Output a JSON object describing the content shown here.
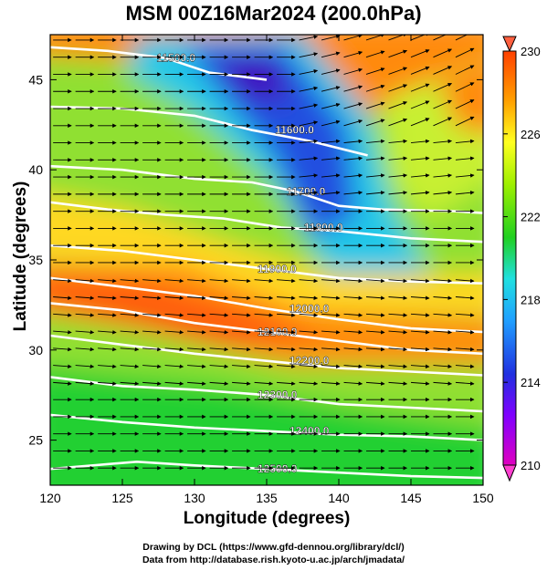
{
  "title": "MSM 00Z16Mar2024 (200.0hPa)",
  "xaxis": {
    "label": "Longitude (degrees)",
    "range": [
      120,
      150
    ],
    "ticks": [
      "120",
      "125",
      "130",
      "135",
      "140",
      "145",
      "150"
    ]
  },
  "yaxis": {
    "label": "Latitude  (degrees)",
    "range": [
      22.5,
      47.5
    ],
    "ticks": [
      "25",
      "30",
      "35",
      "40",
      "45"
    ]
  },
  "colorbar": {
    "range": [
      210,
      230
    ],
    "ticks": [
      "210",
      "214",
      "218",
      "222",
      "226",
      "230"
    ],
    "cmap": "rainbow",
    "extend": "both"
  },
  "contours": [
    {
      "label": "11500.0",
      "path": [
        [
          120,
          46.8
        ],
        [
          124,
          46.6
        ],
        [
          128,
          46.2
        ],
        [
          131,
          45.4
        ],
        [
          135,
          45.0
        ]
      ]
    },
    {
      "label": "11600.0",
      "path": [
        [
          120,
          43.5
        ],
        [
          125,
          43.4
        ],
        [
          130,
          43.0
        ],
        [
          134,
          42.2
        ],
        [
          138,
          41.6
        ],
        [
          142,
          40.8
        ]
      ]
    },
    {
      "label": "11700.0",
      "path": [
        [
          120,
          40.2
        ],
        [
          125,
          40.0
        ],
        [
          130,
          39.5
        ],
        [
          134,
          39.3
        ],
        [
          137,
          38.8
        ],
        [
          140,
          38.0
        ],
        [
          143,
          37.8
        ],
        [
          148,
          37.7
        ],
        [
          150,
          37.6
        ]
      ]
    },
    {
      "label": "11800.0",
      "path": [
        [
          120,
          38.2
        ],
        [
          124,
          37.8
        ],
        [
          128,
          37.5
        ],
        [
          132,
          37.3
        ],
        [
          136,
          36.8
        ],
        [
          140,
          36.6
        ],
        [
          145,
          36.2
        ],
        [
          150,
          36.0
        ]
      ]
    },
    {
      "label": "11900.0",
      "path": [
        [
          120,
          35.8
        ],
        [
          125,
          35.5
        ],
        [
          130,
          35.0
        ],
        [
          135,
          34.5
        ],
        [
          140,
          34.0
        ],
        [
          145,
          33.8
        ],
        [
          150,
          33.7
        ]
      ]
    },
    {
      "label": "12000.0",
      "path": [
        [
          120,
          34.0
        ],
        [
          125,
          33.5
        ],
        [
          130,
          33.0
        ],
        [
          135,
          32.3
        ],
        [
          140,
          31.7
        ],
        [
          145,
          31.2
        ],
        [
          150,
          31.0
        ]
      ]
    },
    {
      "label": "12100.0",
      "path": [
        [
          120,
          32.6
        ],
        [
          125,
          32.2
        ],
        [
          130,
          31.5
        ],
        [
          135,
          31.0
        ],
        [
          140,
          30.5
        ],
        [
          145,
          30.0
        ],
        [
          150,
          29.8
        ]
      ]
    },
    {
      "label": "12200.0",
      "path": [
        [
          120,
          30.8
        ],
        [
          125,
          30.3
        ],
        [
          130,
          29.8
        ],
        [
          135,
          29.4
        ],
        [
          140,
          29.0
        ],
        [
          145,
          28.8
        ],
        [
          150,
          28.6
        ]
      ]
    },
    {
      "label": "12300.0",
      "path": [
        [
          120,
          28.5
        ],
        [
          125,
          28.0
        ],
        [
          130,
          27.8
        ],
        [
          135,
          27.5
        ],
        [
          140,
          27.0
        ],
        [
          145,
          26.8
        ],
        [
          150,
          26.6
        ]
      ]
    },
    {
      "label": "12400.0",
      "path": [
        [
          120,
          26.4
        ],
        [
          125,
          26.0
        ],
        [
          130,
          25.7
        ],
        [
          135,
          25.5
        ],
        [
          140,
          25.3
        ],
        [
          145,
          25.2
        ],
        [
          150,
          25.0
        ]
      ]
    },
    {
      "label": "12500.0",
      "path": [
        [
          120,
          23.4
        ],
        [
          126,
          23.8
        ],
        [
          130,
          23.6
        ],
        [
          135,
          23.4
        ],
        [
          140,
          23.2
        ],
        [
          145,
          23.0
        ],
        [
          150,
          22.9
        ]
      ]
    }
  ],
  "credits": {
    "line1": "Drawing by DCL (https://www.gfd-dennou.org/library/dcl/)",
    "line2": "Data from http://database.rish.kyoto-u.ac.jp/arch/jmadata/"
  }
}
